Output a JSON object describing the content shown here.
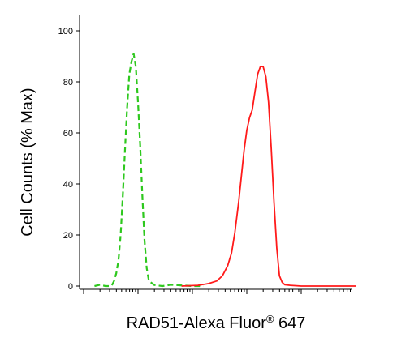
{
  "chart_data": {
    "type": "line",
    "ylabel": "Cell Counts (% Max)",
    "xlabel_main": "RAD51-Alexa Fluor",
    "xlabel_sup": "®",
    "xlabel_tail": " 647",
    "xscale": "log",
    "ylim": [
      0,
      100
    ],
    "yticks": [
      0,
      20,
      40,
      60,
      80,
      100
    ],
    "grid": false,
    "series": [
      {
        "color": "#2ec81e",
        "dash": "dashed",
        "x": [
          0.2,
          0.3,
          0.4,
          0.47,
          0.52,
          0.56,
          0.6,
          0.64,
          0.68,
          0.72,
          0.76,
          0.8,
          0.84,
          0.88,
          0.92,
          0.96,
          1.0,
          1.04,
          1.08,
          1.12,
          1.16,
          1.2,
          1.3,
          1.45,
          1.6,
          2.0,
          2.2
        ],
        "y": [
          0,
          0.5,
          0,
          0,
          0.3,
          2,
          5,
          10,
          20,
          35,
          53,
          70,
          83,
          88,
          91,
          86,
          72,
          55,
          35,
          18,
          7,
          2,
          0.4,
          0,
          0.5,
          0,
          0
        ]
      },
      {
        "color": "#ff1a1a",
        "dash": "solid",
        "x": [
          1.8,
          2.1,
          2.3,
          2.45,
          2.55,
          2.65,
          2.72,
          2.78,
          2.85,
          2.9,
          2.95,
          3.0,
          3.05,
          3.1,
          3.15,
          3.2,
          3.25,
          3.3,
          3.35,
          3.4,
          3.45,
          3.5,
          3.55,
          3.6,
          3.65,
          3.7,
          3.8,
          4.0,
          4.3,
          4.6,
          5.0
        ],
        "y": [
          0,
          0.3,
          1,
          2,
          4,
          8,
          13,
          21,
          33,
          43,
          53,
          61,
          66,
          69,
          76,
          83,
          86,
          86,
          82,
          72,
          54,
          33,
          15,
          4,
          1.5,
          0.5,
          0.3,
          0,
          0,
          0,
          0
        ]
      }
    ]
  }
}
